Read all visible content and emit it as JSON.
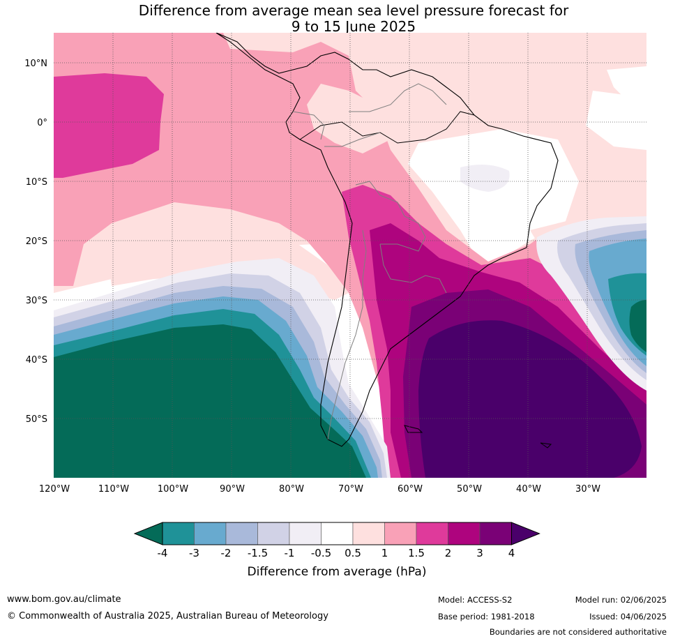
{
  "title_line1": "Difference from average mean sea level pressure forecast for",
  "title_line2": "9 to 15 June 2025",
  "lon_labels": [
    "120°W",
    "110°W",
    "100°W",
    "90°W",
    "80°W",
    "70°W",
    "60°W",
    "50°W",
    "40°W",
    "30°W"
  ],
  "lat_labels": [
    "10°N",
    "0°",
    "10°S",
    "20°S",
    "30°S",
    "40°S",
    "50°S"
  ],
  "colorbar": {
    "title": "Difference from average (hPa)",
    "tick_labels": [
      "-4",
      "-3",
      "-2",
      "-1.5",
      "-1",
      "-0.5",
      "0.5",
      "1",
      "1.5",
      "2",
      "3",
      "4"
    ],
    "colors": {
      "below_-4": "#046b58",
      "-4_-3": "#1f9298",
      "-3_-2": "#68aacf",
      "-2_-1.5": "#a9b9da",
      "-1.5_-1": "#d1d2e6",
      "-1_-0.5": "#f1eef5",
      "-0.5_0.5": "#ffffff",
      "0.5_1": "#fee0df",
      "1_1.5": "#f9a1b7",
      "1.5_2": "#df3a9b",
      "2_3": "#ae047e",
      "3_4": "#7a0176",
      "above_4": "#4a006a"
    }
  },
  "footer": {
    "url": "www.bom.gov.au/climate",
    "copyright": "© Commonwealth of Australia 2025, Australian Bureau of Meteorology",
    "model": "Model: ACCESS-S2",
    "base_period": "Base period: 1981-2018",
    "model_run": "Model run: 02/06/2025",
    "issued": "Issued: 04/06/2025",
    "disclaimer": "Boundaries are not considered authoritative"
  }
}
